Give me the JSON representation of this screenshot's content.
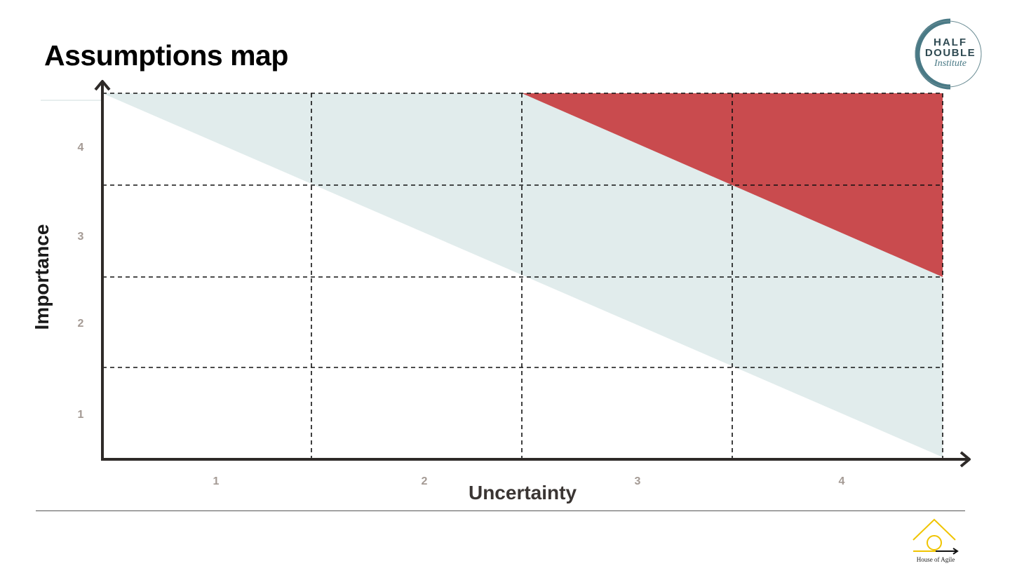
{
  "title": "Assumptions map",
  "chart_data": {
    "type": "area",
    "xlabel": "Uncertainty",
    "ylabel": "Importance",
    "x_ticks": [
      "1",
      "2",
      "3",
      "4"
    ],
    "y_ticks": [
      "1",
      "2",
      "3",
      "4"
    ],
    "grid": "dashed 4x4",
    "regions": [
      {
        "name": "light-band",
        "color": "#e1ecec"
      },
      {
        "name": "high-risk-corner",
        "color": "#c94b4e"
      }
    ]
  },
  "logos": {
    "top": {
      "line1": "HALF",
      "line2": "DOUBLE",
      "line3": "Institute"
    },
    "bottom": {
      "text": "House of Agile"
    }
  },
  "colors": {
    "axis": "#2e2a28",
    "red": "#c94b4e",
    "band": "#e1ecec",
    "tick": "#a49a94",
    "teal": "#4a7a86",
    "yellow": "#f0c400"
  }
}
